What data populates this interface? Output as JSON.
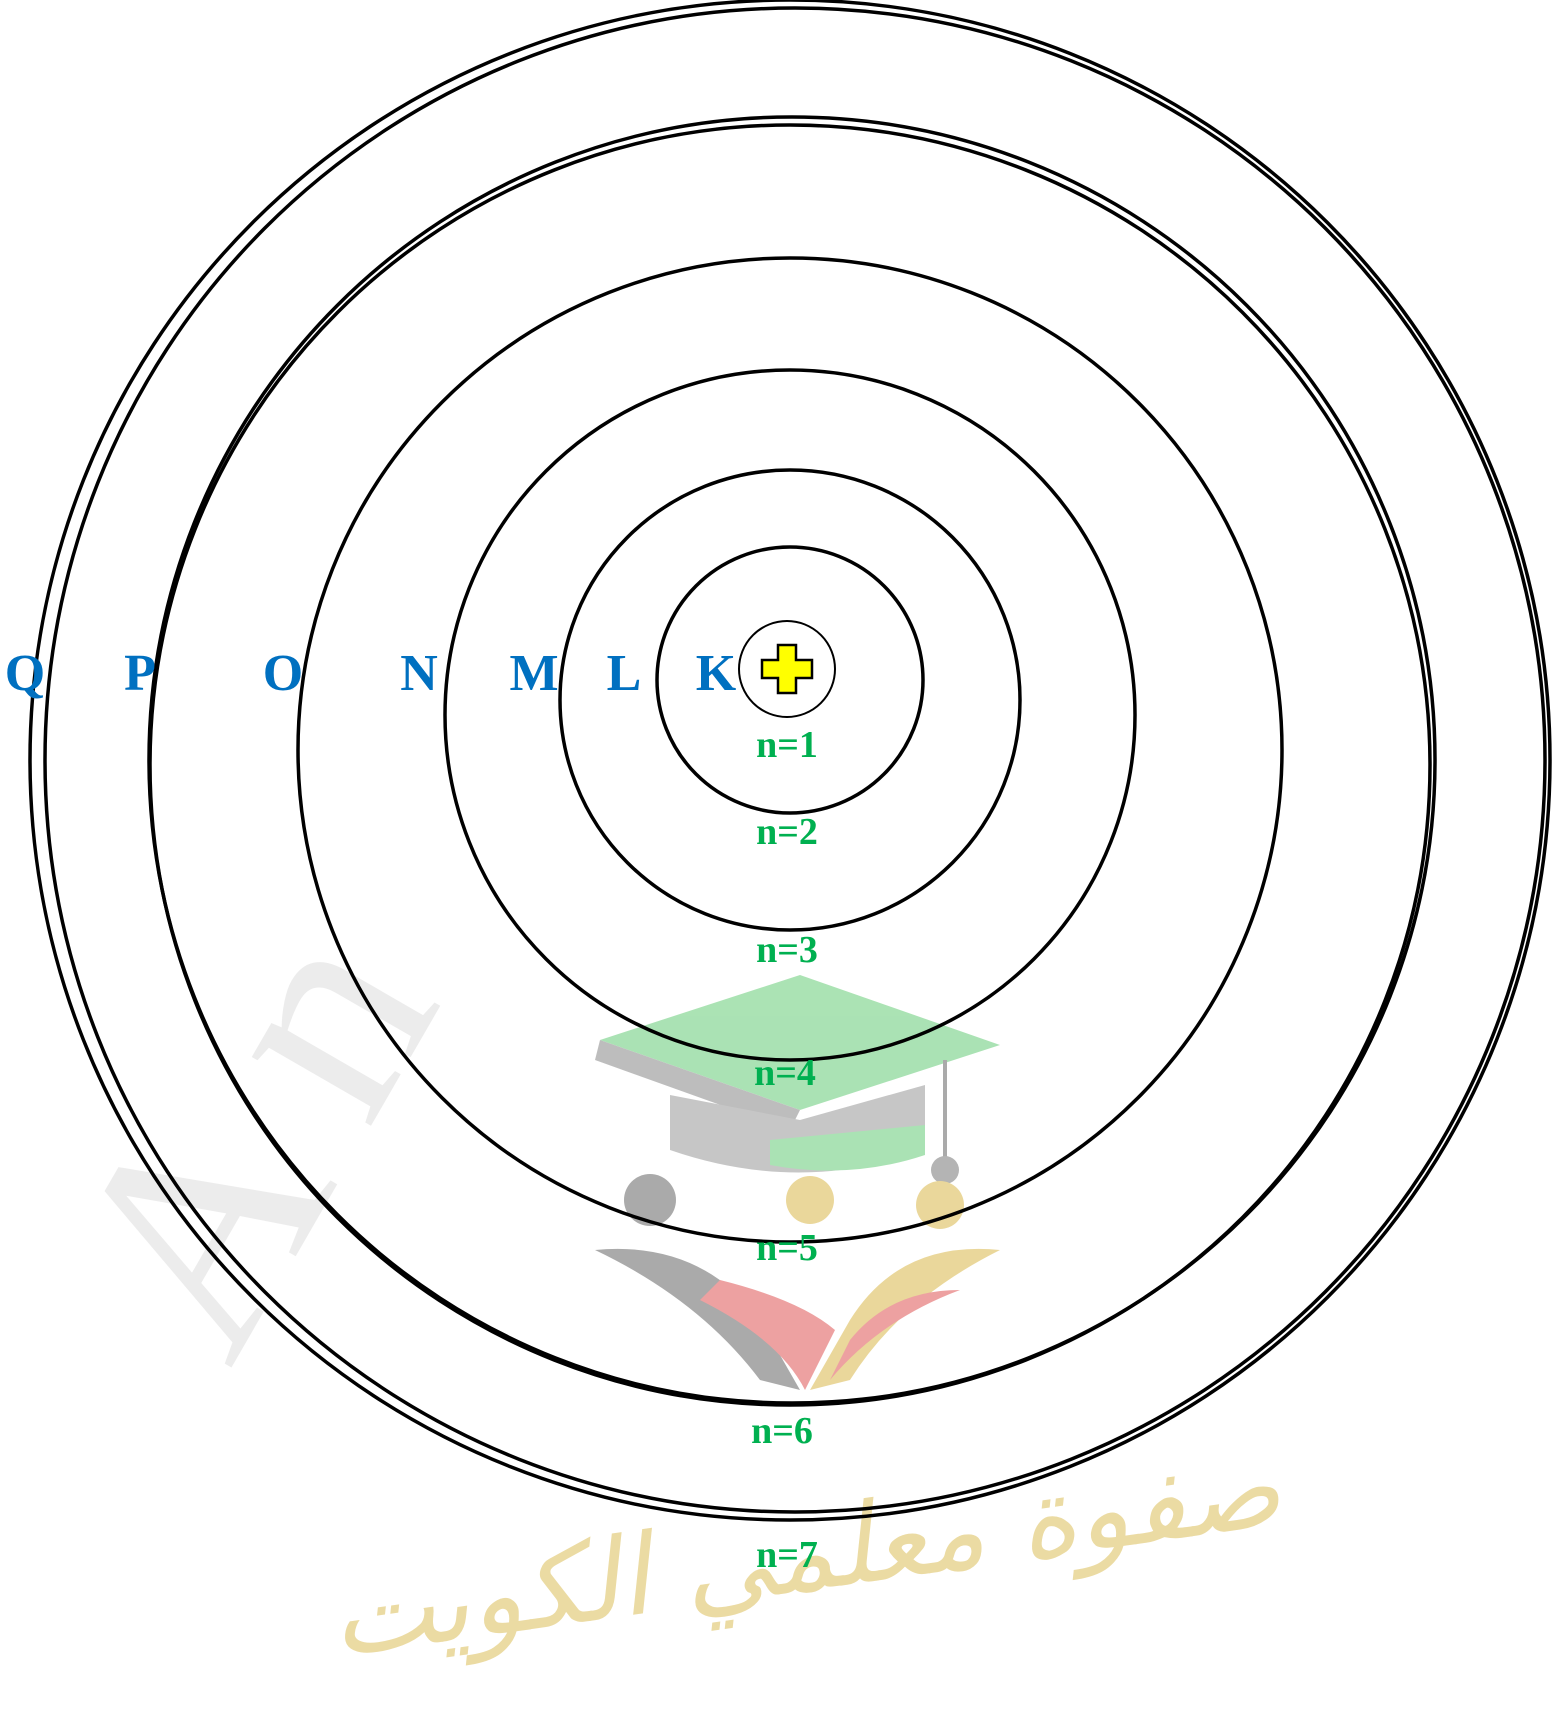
{
  "shells": [
    {
      "letter": "K",
      "n_label": "n=1"
    },
    {
      "letter": "L",
      "n_label": "n=2"
    },
    {
      "letter": "M",
      "n_label": "n=3"
    },
    {
      "letter": "N",
      "n_label": "n=4"
    },
    {
      "letter": "O",
      "n_label": "n=5"
    },
    {
      "letter": "P",
      "n_label": "n=6"
    },
    {
      "letter": "Q",
      "n_label": "n=7"
    }
  ],
  "nucleus": {
    "symbol": "+"
  },
  "colors": {
    "orbit": "#000000",
    "shell_letter": "#0070c0",
    "n_label": "#00b050",
    "nucleus_fill": "#ffff00",
    "watermark_gray": "#d9d9d9",
    "logo_green": "#66cc77",
    "logo_gray": "#777777",
    "logo_red": "#e05555",
    "logo_gold": "#d9b84a"
  },
  "watermark": {
    "latin_text": "A n",
    "logo_caption": "صفوة معلمي الكويت"
  }
}
